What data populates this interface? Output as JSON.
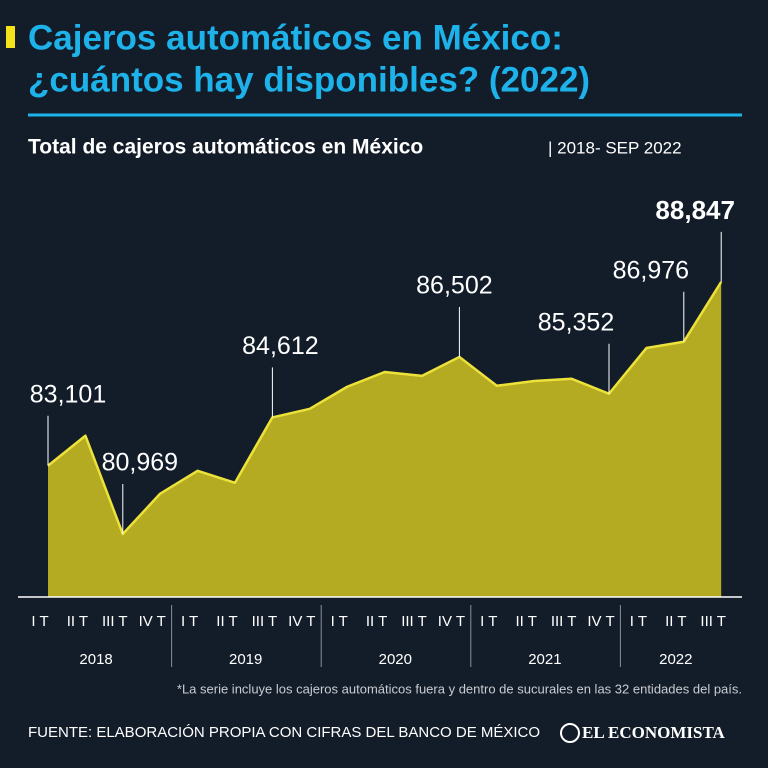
{
  "title": [
    "Cajeros automáticos en México:",
    "¿cuántos hay disponibles? (2022)"
  ],
  "chart_data": {
    "type": "area",
    "title": "Total de cajeros automáticos en México",
    "subtitle": "| 2018- SEP 2022",
    "groups": [
      {
        "name": "2018",
        "categories": [
          "I T",
          "II T",
          "III T",
          "IV T"
        ]
      },
      {
        "name": "2019",
        "categories": [
          "I T",
          "II T",
          "III T",
          "IV T"
        ]
      },
      {
        "name": "2020",
        "categories": [
          "I T",
          "II T",
          "III T",
          "IV T"
        ]
      },
      {
        "name": "2021",
        "categories": [
          "I T",
          "II T",
          "III T",
          "IV T"
        ]
      },
      {
        "name": "2022",
        "categories": [
          "I T",
          "II T",
          "III T"
        ]
      }
    ],
    "values": [
      83101,
      84040,
      80969,
      82230,
      82945,
      82570,
      84612,
      84880,
      85570,
      86030,
      85910,
      86502,
      85600,
      85750,
      85820,
      85352,
      86780,
      86976,
      88847
    ],
    "value_labels": [
      "83,101",
      null,
      "80,969",
      null,
      null,
      null,
      "84,612",
      null,
      null,
      null,
      null,
      "86,502",
      null,
      null,
      null,
      "85,352",
      null,
      "86,976",
      "88,847"
    ],
    "color": "#b5ab22",
    "line_color": "#ece23a",
    "ylim": [
      79000,
      89000
    ]
  },
  "footnote": "*La serie incluye los cajeros automáticos fuera y dentro de sucurales en las 32 entidades del país.",
  "source": "FUENTE: ELABORACIÓN PROPIA CON CIFRAS DEL BANCO DE MÉXICO",
  "brand": "EL ECONOMISTA"
}
